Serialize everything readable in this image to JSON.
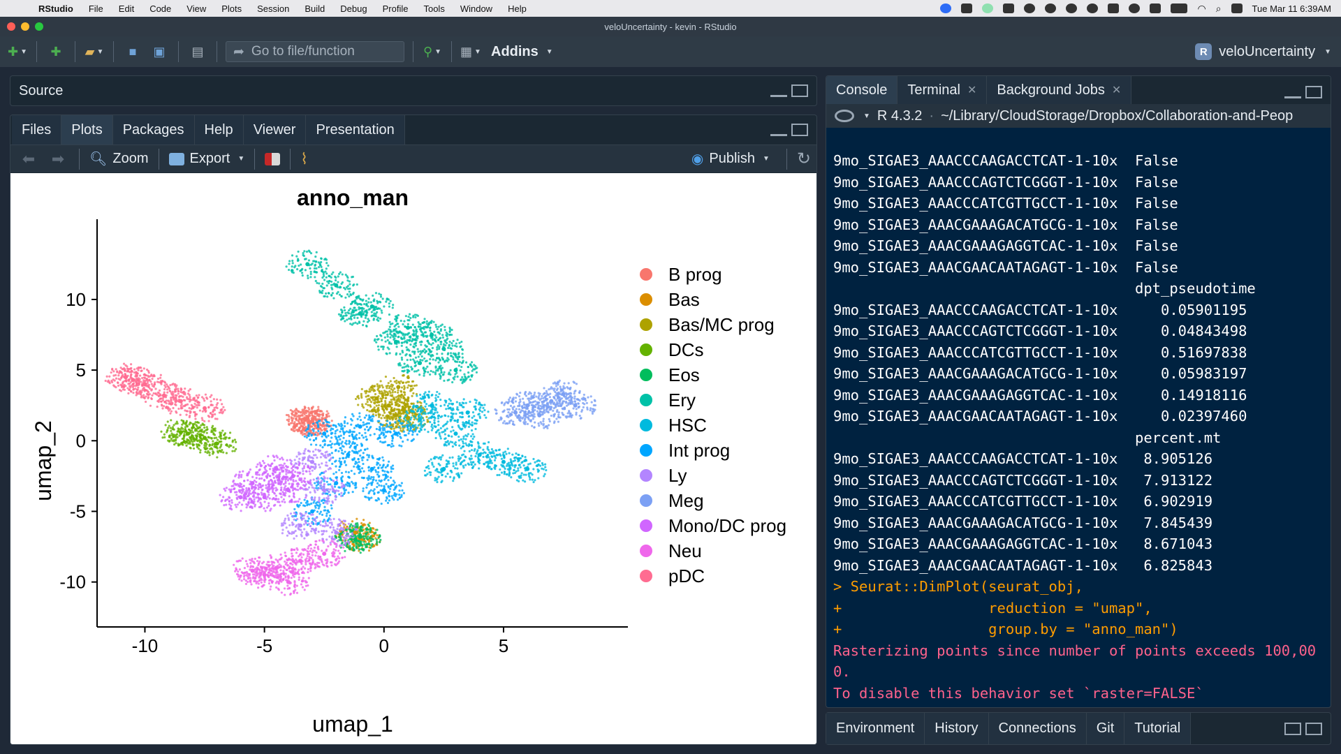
{
  "menubar": {
    "app_name": "RStudio",
    "items": [
      "File",
      "Edit",
      "Code",
      "View",
      "Plots",
      "Session",
      "Build",
      "Debug",
      "Profile",
      "Tools",
      "Window",
      "Help"
    ],
    "datetime": "Tue Mar 11  6:39AM"
  },
  "window": {
    "title": "veloUncertainty - kevin - RStudio"
  },
  "toolbar": {
    "goto_placeholder": "Go to file/function",
    "addins_label": "Addins",
    "project_name": "veloUncertainty",
    "project_icon_letter": "R"
  },
  "source_pane": {
    "title": "Source"
  },
  "files_pane": {
    "tabs": [
      "Files",
      "Plots",
      "Packages",
      "Help",
      "Viewer",
      "Presentation"
    ],
    "active_tab": "Plots",
    "zoom_label": "Zoom",
    "export_label": "Export",
    "publish_label": "Publish"
  },
  "console_pane": {
    "tabs": [
      "Console",
      "Terminal",
      "Background Jobs"
    ],
    "active_tab": "Console",
    "r_version": "R 4.3.2",
    "path": "~/Library/CloudStorage/Dropbox/Collaboration-and-Peop",
    "lines": [
      {
        "text": "9mo_SIGAE3_AAACCCAAGACCTCAT-1-10x  False",
        "kind": "out"
      },
      {
        "text": "9mo_SIGAE3_AAACCCAGTCTCGGGT-1-10x  False",
        "kind": "out"
      },
      {
        "text": "9mo_SIGAE3_AAACCCATCGTTGCCT-1-10x  False",
        "kind": "out"
      },
      {
        "text": "9mo_SIGAE3_AAACGAAAGACATGCG-1-10x  False",
        "kind": "out"
      },
      {
        "text": "9mo_SIGAE3_AAACGAAAGAGGTCAC-1-10x  False",
        "kind": "out"
      },
      {
        "text": "9mo_SIGAE3_AAACGAACAATAGAGT-1-10x  False",
        "kind": "out"
      },
      {
        "text": "                                   dpt_pseudotime",
        "kind": "out"
      },
      {
        "text": "9mo_SIGAE3_AAACCCAAGACCTCAT-1-10x     0.05901195",
        "kind": "out"
      },
      {
        "text": "9mo_SIGAE3_AAACCCAGTCTCGGGT-1-10x     0.04843498",
        "kind": "out"
      },
      {
        "text": "9mo_SIGAE3_AAACCCATCGTTGCCT-1-10x     0.51697838",
        "kind": "out"
      },
      {
        "text": "9mo_SIGAE3_AAACGAAAGACATGCG-1-10x     0.05983197",
        "kind": "out"
      },
      {
        "text": "9mo_SIGAE3_AAACGAAAGAGGTCAC-1-10x     0.14918116",
        "kind": "out"
      },
      {
        "text": "9mo_SIGAE3_AAACGAACAATAGAGT-1-10x     0.02397460",
        "kind": "out"
      },
      {
        "text": "                                   percent.mt",
        "kind": "out"
      },
      {
        "text": "9mo_SIGAE3_AAACCCAAGACCTCAT-1-10x   8.905126",
        "kind": "out"
      },
      {
        "text": "9mo_SIGAE3_AAACCCAGTCTCGGGT-1-10x   7.913122",
        "kind": "out"
      },
      {
        "text": "9mo_SIGAE3_AAACCCATCGTTGCCT-1-10x   6.902919",
        "kind": "out"
      },
      {
        "text": "9mo_SIGAE3_AAACGAAAGACATGCG-1-10x   7.845439",
        "kind": "out"
      },
      {
        "text": "9mo_SIGAE3_AAACGAAAGAGGTCAC-1-10x   8.671043",
        "kind": "out"
      },
      {
        "text": "9mo_SIGAE3_AAACGAACAATAGAGT-1-10x   6.825843",
        "kind": "out"
      },
      {
        "text": "> Seurat::DimPlot(seurat_obj,",
        "kind": "cmd"
      },
      {
        "text": "+                 reduction = \"umap\",",
        "kind": "cmd"
      },
      {
        "text": "+                 group.by = \"anno_man\")",
        "kind": "cmd"
      },
      {
        "text": "Rasterizing points since number of points exceeds 100,00",
        "kind": "warn"
      },
      {
        "text": "0.",
        "kind": "warn"
      },
      {
        "text": "To disable this behavior set `raster=FALSE`",
        "kind": "warn"
      }
    ],
    "prompt": ">"
  },
  "env_pane": {
    "tabs": [
      "Environment",
      "History",
      "Connections",
      "Git",
      "Tutorial"
    ]
  },
  "colors": {
    "console_bg": "#002240",
    "command": "#ff9d00",
    "warning": "#ff628c"
  },
  "chart_data": {
    "type": "scatter",
    "title": "anno_man",
    "xlabel": "umap_1",
    "ylabel": "umap_2",
    "xlim": [
      -12,
      9.5
    ],
    "ylim": [
      -11.5,
      14
    ],
    "xticks": [
      -10,
      -5,
      0,
      5
    ],
    "yticks": [
      -10,
      -5,
      0,
      5,
      10
    ],
    "grid": false,
    "legend_position": "right",
    "series": [
      {
        "name": "B prog",
        "color": "#F8766D",
        "points": [
          [
            -3.3,
            1.5
          ],
          [
            -3.1,
            1.3
          ],
          [
            -3.0,
            1.4
          ],
          [
            -3.2,
            1.6
          ]
        ]
      },
      {
        "name": "Bas",
        "color": "#DB8E00",
        "points": [
          [
            -1.2,
            -6.5
          ],
          [
            -1.0,
            -6.9
          ]
        ]
      },
      {
        "name": "Bas/MC prog",
        "color": "#AEA200",
        "points": [
          [
            0.2,
            2.5
          ],
          [
            0.8,
            2.2
          ],
          [
            1.0,
            1.6
          ],
          [
            0.5,
            1.8
          ],
          [
            -0.3,
            3.0
          ],
          [
            0.6,
            3.8
          ]
        ]
      },
      {
        "name": "DCs",
        "color": "#64B200",
        "points": [
          [
            -8.2,
            0.5
          ],
          [
            -7.5,
            0.2
          ],
          [
            -8.5,
            0.6
          ],
          [
            -7.0,
            -0.2
          ]
        ]
      },
      {
        "name": "Eos",
        "color": "#00BD5C",
        "points": [
          [
            -1.0,
            -6.8
          ],
          [
            -1.2,
            -7.0
          ]
        ]
      },
      {
        "name": "Ery",
        "color": "#00C1A7",
        "points": [
          [
            -3.2,
            12.5
          ],
          [
            -2.0,
            11.0
          ],
          [
            -0.5,
            9.5
          ],
          [
            1.0,
            8.0
          ],
          [
            2.0,
            7.5
          ],
          [
            3.0,
            5.0
          ],
          [
            1.5,
            5.5
          ],
          [
            0.5,
            7.0
          ],
          [
            -1.0,
            9.0
          ],
          [
            2.5,
            6.5
          ]
        ]
      },
      {
        "name": "HSC",
        "color": "#00BADE",
        "points": [
          [
            1.5,
            1.5
          ],
          [
            3.0,
            0.5
          ],
          [
            4.0,
            -1.0
          ],
          [
            2.5,
            -2.0
          ],
          [
            5.0,
            -1.5
          ],
          [
            6.0,
            -2.0
          ],
          [
            2.0,
            2.5
          ],
          [
            3.5,
            2.0
          ]
        ]
      },
      {
        "name": "Int prog",
        "color": "#00A6FF",
        "points": [
          [
            -2.5,
            0.5
          ],
          [
            -1.5,
            -1.0
          ],
          [
            -0.5,
            -2.0
          ],
          [
            0.5,
            0.5
          ],
          [
            -1.0,
            1.0
          ],
          [
            -2.0,
            -3.0
          ],
          [
            -3.0,
            -5.0
          ],
          [
            0.0,
            -3.5
          ]
        ]
      },
      {
        "name": "Ly",
        "color": "#B385FF",
        "points": [
          [
            -3.0,
            -1.5
          ],
          [
            -2.5,
            -3.5
          ],
          [
            -3.5,
            -6.0
          ],
          [
            -2.0,
            -6.5
          ]
        ]
      },
      {
        "name": "Meg",
        "color": "#7CA0F4",
        "points": [
          [
            6.0,
            2.5
          ],
          [
            7.0,
            2.8
          ],
          [
            8.0,
            2.5
          ],
          [
            6.5,
            1.8
          ],
          [
            7.5,
            3.3
          ],
          [
            5.5,
            2.0
          ]
        ]
      },
      {
        "name": "Mono/DC prog",
        "color": "#D066FF",
        "points": [
          [
            -5.5,
            -3.0
          ],
          [
            -4.5,
            -2.0
          ],
          [
            -5.0,
            -4.0
          ],
          [
            -4.0,
            -3.5
          ],
          [
            -6.0,
            -4.0
          ],
          [
            -3.8,
            -2.5
          ]
        ]
      },
      {
        "name": "Neu",
        "color": "#EF67EB",
        "points": [
          [
            -5.0,
            -9.5
          ],
          [
            -4.5,
            -9.0
          ],
          [
            -3.5,
            -8.5
          ],
          [
            -4.0,
            -10.0
          ],
          [
            -2.5,
            -8.0
          ],
          [
            -5.5,
            -9.2
          ]
        ]
      },
      {
        "name": "pDC",
        "color": "#FF6C91",
        "points": [
          [
            -10.5,
            4.3
          ],
          [
            -10.0,
            4.0
          ],
          [
            -9.2,
            3.2
          ],
          [
            -8.5,
            2.8
          ],
          [
            -7.5,
            2.3
          ],
          [
            -10.8,
            4.5
          ]
        ]
      }
    ]
  }
}
